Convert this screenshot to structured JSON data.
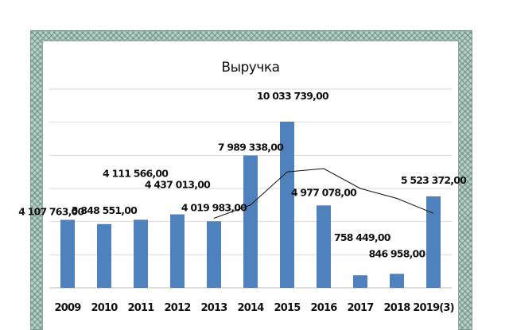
{
  "frame": {
    "paper_color": "#ffffff",
    "border_color": "#bcd0c8"
  },
  "chart_data": {
    "type": "bar",
    "title": "Выручка",
    "xlabel": "",
    "ylabel": "",
    "categories": [
      "2009",
      "2010",
      "2011",
      "2012",
      "2013",
      "2014",
      "2015",
      "2016",
      "2017",
      "2018",
      "2019(3)"
    ],
    "series": [
      {
        "values": [
          4107763,
          3848551,
          4111566,
          4437013,
          4019983,
          7989338,
          10033739,
          4977078,
          758449,
          846958,
          5523372
        ],
        "data_labels": [
          "4 107 763,00",
          "3 848 551,00",
          "4 111 566,00",
          "4 437 013,00",
          "4 019 983,00",
          "7 989 338,00",
          "10 033 739,00",
          "4 977 078,00",
          "758 449,00",
          "846 958,00",
          "5 523 372,00"
        ],
        "color": "#4f81bd"
      }
    ],
    "trendline": {
      "type": "moving-average",
      "color": "#111111",
      "x": [
        "2013",
        "2014",
        "2015",
        "2016",
        "2017",
        "2018",
        "2019(3)"
      ],
      "values": [
        4200000,
        5000000,
        7000000,
        7200000,
        6000000,
        5400000,
        4500000
      ]
    },
    "ylim": [
      0,
      12000000
    ],
    "y_gridlines": [
      2000000,
      4000000,
      6000000,
      8000000,
      10000000,
      12000000
    ],
    "grid": true,
    "y_axis_labels_visible": false,
    "legend": "none"
  }
}
